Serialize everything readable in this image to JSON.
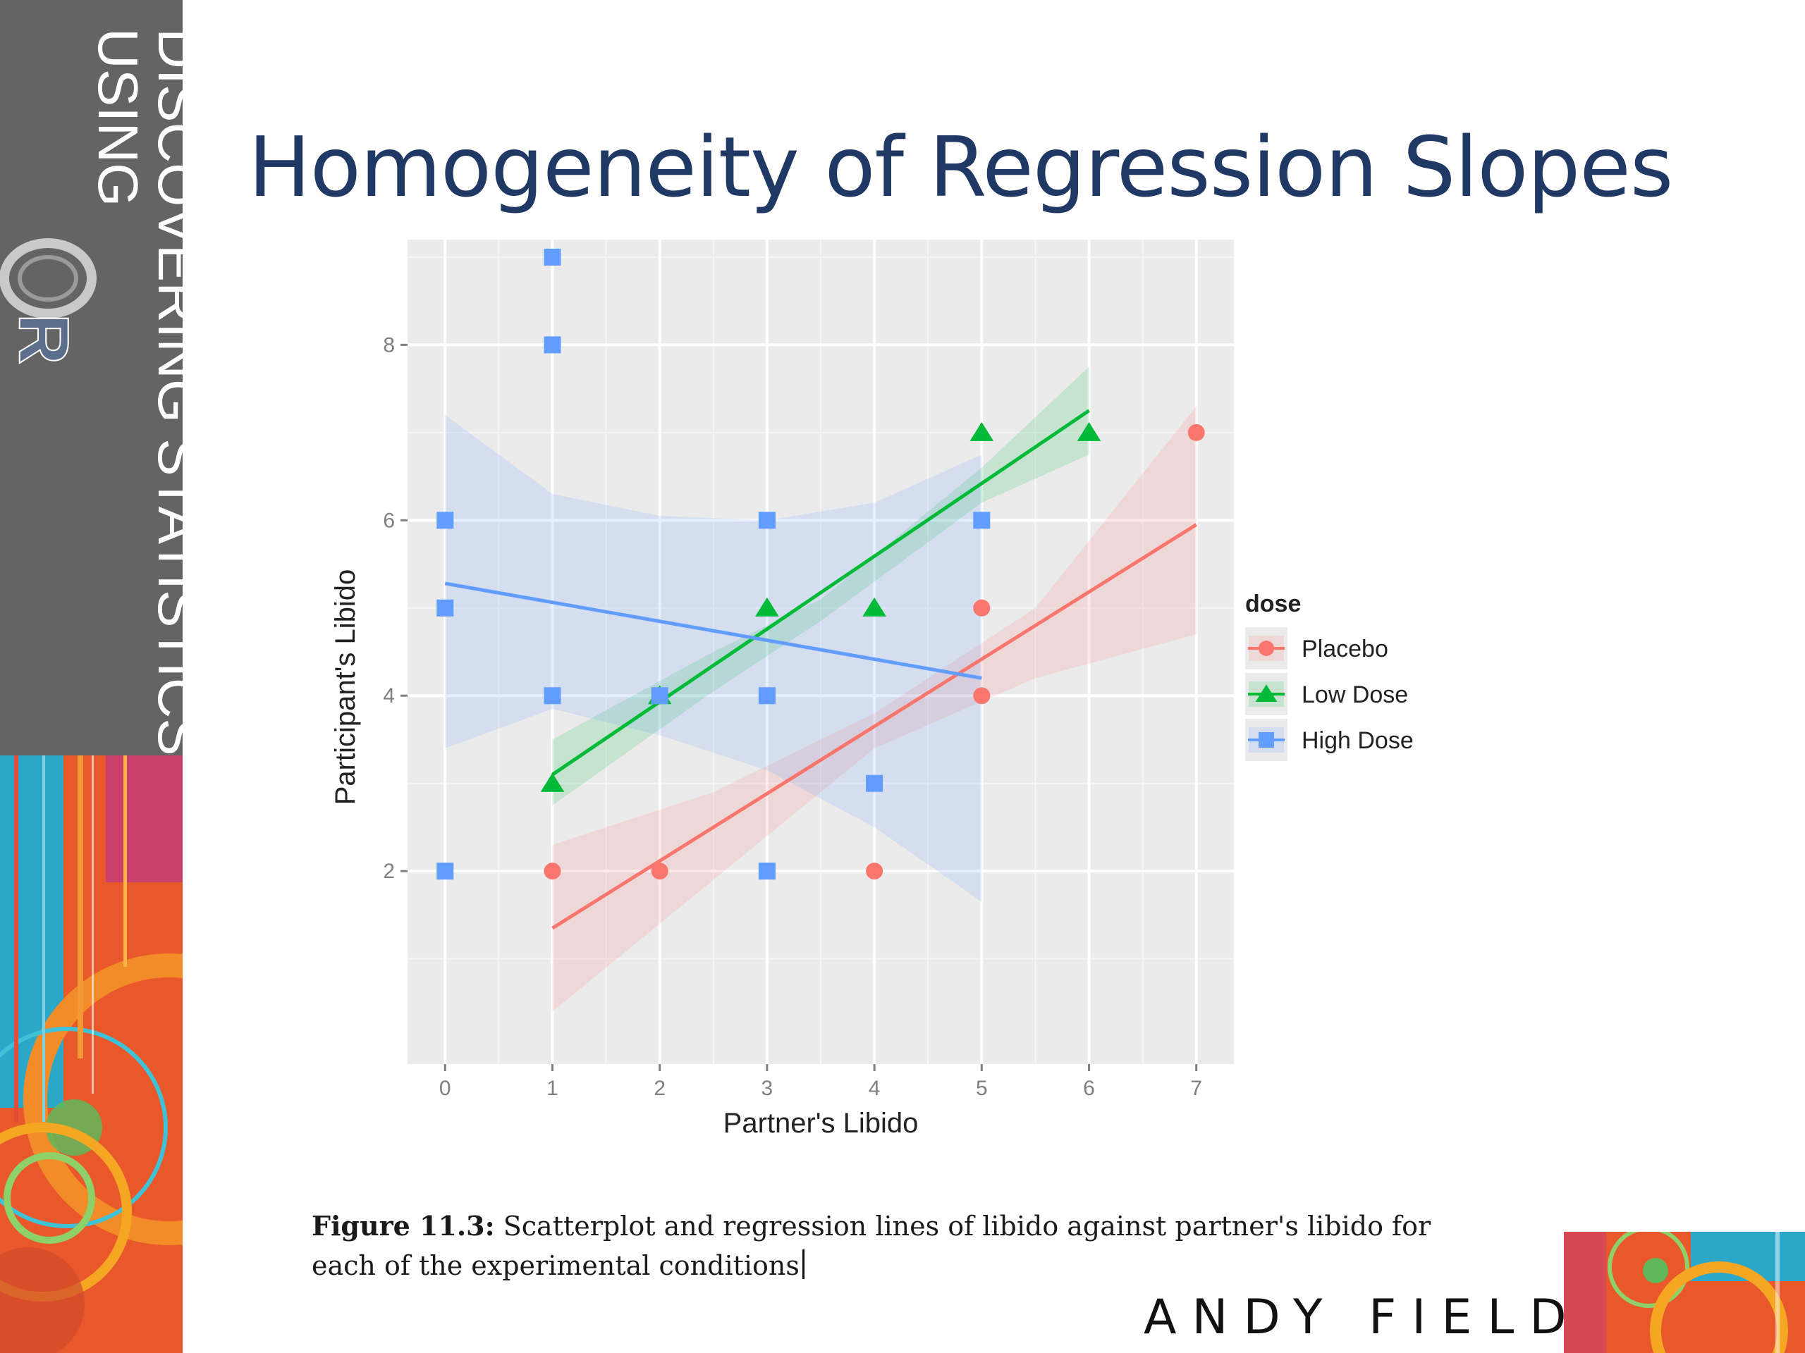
{
  "branding": {
    "line1": "DISCOVERING STATISTICS",
    "line2": "USING",
    "logo_letter": "R"
  },
  "slide": {
    "title": "Homogeneity of Regression Slopes"
  },
  "caption": {
    "label": "Figure 11.3:",
    "text": "Scatterplot and regression lines of libido against partner's libido for each of the experimental conditions"
  },
  "footer": {
    "author": "ANDY FIELD"
  },
  "colors": {
    "title": "#1f3864",
    "panel_bg": "#ebebeb",
    "placebo": "#f8766d",
    "low_dose": "#00ba38",
    "high_dose": "#619cff"
  },
  "chart_data": {
    "type": "scatter",
    "title": "",
    "xlabel": "Partner's Libido",
    "ylabel": "Participant's Libido",
    "xlim": [
      -0.35,
      7.35
    ],
    "ylim": [
      -0.2,
      9.2
    ],
    "x_ticks": [
      0,
      1,
      2,
      3,
      4,
      5,
      6,
      7
    ],
    "y_ticks": [
      2,
      4,
      6,
      8
    ],
    "grid": true,
    "legend": {
      "title": "dose",
      "placement": "right"
    },
    "series": [
      {
        "name": "Placebo",
        "shape": "circle",
        "color": "#f8766d",
        "points": [
          [
            1,
            2
          ],
          [
            2,
            2
          ],
          [
            4,
            2
          ],
          [
            5,
            5
          ],
          [
            5,
            4
          ],
          [
            7,
            7
          ]
        ],
        "fit": {
          "x": [
            1,
            7
          ],
          "y": [
            1.35,
            5.95
          ]
        },
        "band_upper": [
          [
            1,
            2.3
          ],
          [
            2.5,
            2.9
          ],
          [
            4,
            3.8
          ],
          [
            5.5,
            5.0
          ],
          [
            7,
            7.3
          ]
        ],
        "band_lower": [
          [
            1,
            0.4
          ],
          [
            2.5,
            1.9
          ],
          [
            4,
            3.4
          ],
          [
            5.5,
            4.2
          ],
          [
            7,
            4.7
          ]
        ]
      },
      {
        "name": "Low Dose",
        "shape": "triangle",
        "color": "#00ba38",
        "points": [
          [
            1,
            3
          ],
          [
            2,
            4
          ],
          [
            3,
            5
          ],
          [
            4,
            5
          ],
          [
            5,
            7
          ],
          [
            6,
            7
          ]
        ],
        "fit": {
          "x": [
            1,
            6
          ],
          "y": [
            3.1,
            7.25
          ]
        },
        "band_upper": [
          [
            1,
            3.5
          ],
          [
            2.5,
            4.5
          ],
          [
            3.5,
            5.1
          ],
          [
            5,
            6.6
          ],
          [
            6,
            7.75
          ]
        ],
        "band_lower": [
          [
            1,
            2.75
          ],
          [
            2.5,
            4.05
          ],
          [
            3.5,
            4.85
          ],
          [
            5,
            6.2
          ],
          [
            6,
            6.75
          ]
        ]
      },
      {
        "name": "High Dose",
        "shape": "square",
        "color": "#619cff",
        "points": [
          [
            0,
            6
          ],
          [
            0,
            5
          ],
          [
            0,
            2
          ],
          [
            1,
            9
          ],
          [
            1,
            8
          ],
          [
            1,
            4
          ],
          [
            2,
            4
          ],
          [
            3,
            6
          ],
          [
            3,
            4
          ],
          [
            3,
            2
          ],
          [
            4,
            3
          ],
          [
            5,
            6
          ]
        ],
        "fit": {
          "x": [
            0,
            5
          ],
          "y": [
            5.28,
            4.2
          ]
        },
        "band_upper": [
          [
            0,
            7.2
          ],
          [
            1,
            6.3
          ],
          [
            2,
            6.05
          ],
          [
            3,
            6.0
          ],
          [
            4,
            6.2
          ],
          [
            5,
            6.75
          ]
        ],
        "band_lower": [
          [
            0,
            3.4
          ],
          [
            1,
            3.85
          ],
          [
            2,
            3.55
          ],
          [
            3,
            3.15
          ],
          [
            4,
            2.5
          ],
          [
            5,
            1.65
          ]
        ]
      }
    ]
  }
}
